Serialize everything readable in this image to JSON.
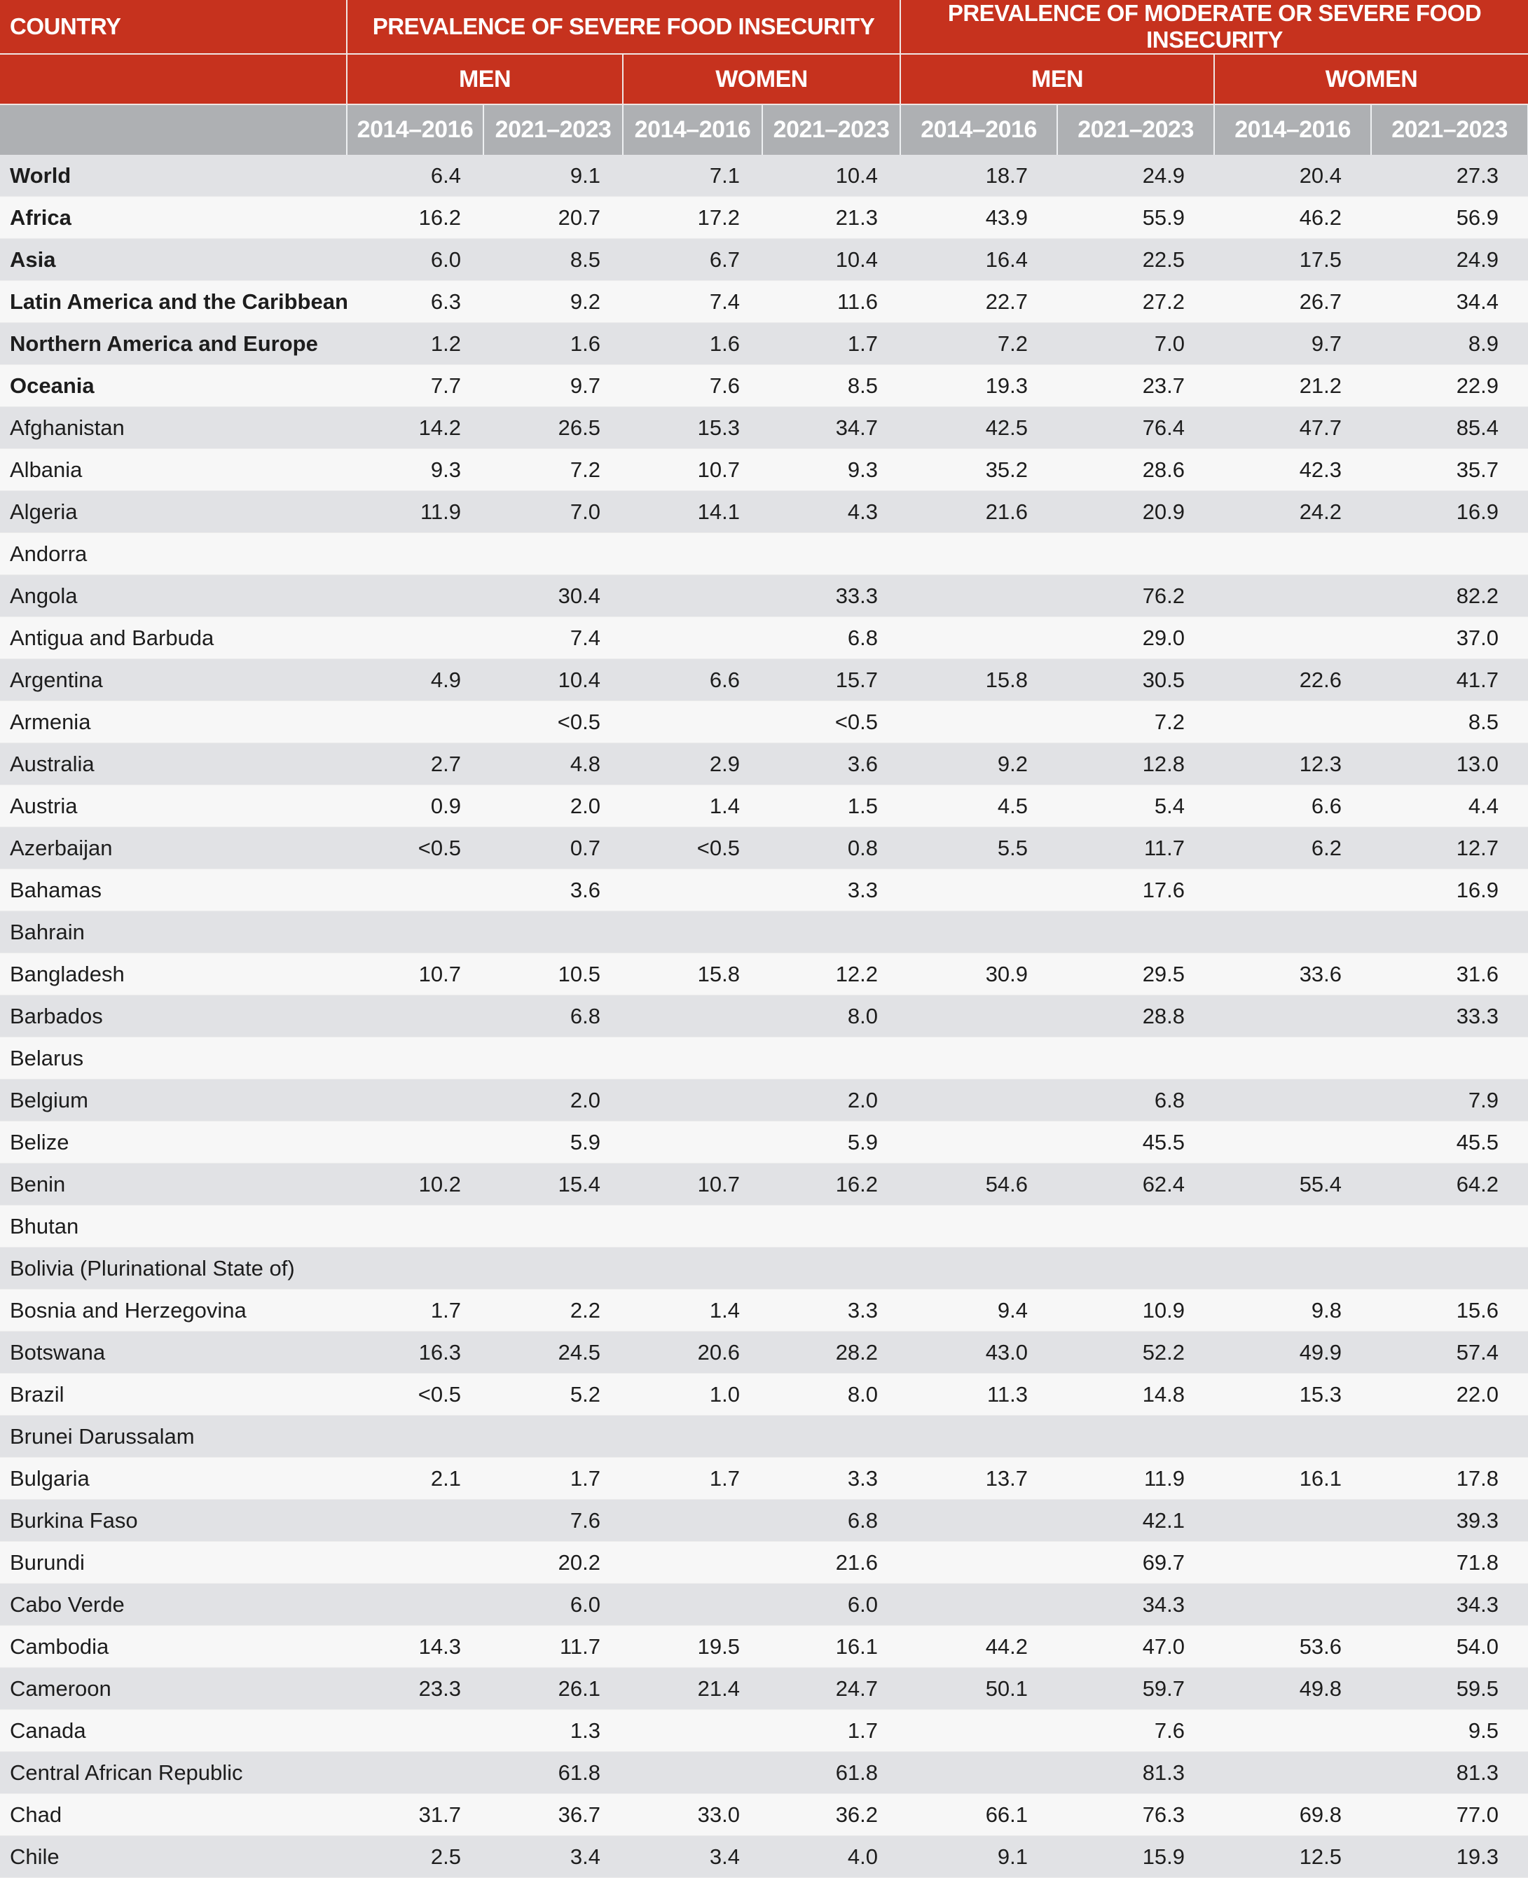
{
  "table": {
    "country_header": "COUNTRY",
    "groups": [
      {
        "label": "PREVALENCE OF SEVERE FOOD INSECURITY"
      },
      {
        "label": "PREVALENCE OF MODERATE OR SEVERE FOOD INSECURITY"
      }
    ],
    "sex_headers": [
      "MEN",
      "WOMEN",
      "MEN",
      "WOMEN"
    ],
    "period_headers": [
      "2014–2016",
      "2021–2023",
      "2014–2016",
      "2021–2023",
      "2014–2016",
      "2021–2023",
      "2014–2016",
      "2021–2023"
    ],
    "colors": {
      "header_red": "#c6321e",
      "subheader_grey": "#aeb0b3",
      "row_shade": "#e1e2e5",
      "row_light": "#f7f7f7"
    },
    "rows": [
      {
        "name": "World",
        "aggregate": true,
        "values": [
          "6.4",
          "9.1",
          "7.1",
          "10.4",
          "18.7",
          "24.9",
          "20.4",
          "27.3"
        ]
      },
      {
        "name": "Africa",
        "aggregate": true,
        "values": [
          "16.2",
          "20.7",
          "17.2",
          "21.3",
          "43.9",
          "55.9",
          "46.2",
          "56.9"
        ]
      },
      {
        "name": "Asia",
        "aggregate": true,
        "values": [
          "6.0",
          "8.5",
          "6.7",
          "10.4",
          "16.4",
          "22.5",
          "17.5",
          "24.9"
        ]
      },
      {
        "name": "Latin America and the Caribbean",
        "aggregate": true,
        "values": [
          "6.3",
          "9.2",
          "7.4",
          "11.6",
          "22.7",
          "27.2",
          "26.7",
          "34.4"
        ]
      },
      {
        "name": "Northern America and Europe",
        "aggregate": true,
        "values": [
          "1.2",
          "1.6",
          "1.6",
          "1.7",
          "7.2",
          "7.0",
          "9.7",
          "8.9"
        ]
      },
      {
        "name": "Oceania",
        "aggregate": true,
        "values": [
          "7.7",
          "9.7",
          "7.6",
          "8.5",
          "19.3",
          "23.7",
          "21.2",
          "22.9"
        ]
      },
      {
        "name": "Afghanistan",
        "values": [
          "14.2",
          "26.5",
          "15.3",
          "34.7",
          "42.5",
          "76.4",
          "47.7",
          "85.4"
        ]
      },
      {
        "name": "Albania",
        "values": [
          "9.3",
          "7.2",
          "10.7",
          "9.3",
          "35.2",
          "28.6",
          "42.3",
          "35.7"
        ]
      },
      {
        "name": "Algeria",
        "values": [
          "11.9",
          "7.0",
          "14.1",
          "4.3",
          "21.6",
          "20.9",
          "24.2",
          "16.9"
        ]
      },
      {
        "name": "Andorra",
        "values": [
          "",
          "",
          "",
          "",
          "",
          "",
          "",
          ""
        ]
      },
      {
        "name": "Angola",
        "values": [
          "",
          "30.4",
          "",
          "33.3",
          "",
          "76.2",
          "",
          "82.2"
        ]
      },
      {
        "name": "Antigua and Barbuda",
        "values": [
          "",
          "7.4",
          "",
          "6.8",
          "",
          "29.0",
          "",
          "37.0"
        ]
      },
      {
        "name": "Argentina",
        "values": [
          "4.9",
          "10.4",
          "6.6",
          "15.7",
          "15.8",
          "30.5",
          "22.6",
          "41.7"
        ]
      },
      {
        "name": "Armenia",
        "values": [
          "",
          "<0.5",
          "",
          "<0.5",
          "",
          "7.2",
          "",
          "8.5"
        ]
      },
      {
        "name": "Australia",
        "values": [
          "2.7",
          "4.8",
          "2.9",
          "3.6",
          "9.2",
          "12.8",
          "12.3",
          "13.0"
        ]
      },
      {
        "name": "Austria",
        "values": [
          "0.9",
          "2.0",
          "1.4",
          "1.5",
          "4.5",
          "5.4",
          "6.6",
          "4.4"
        ]
      },
      {
        "name": "Azerbaijan",
        "values": [
          "<0.5",
          "0.7",
          "<0.5",
          "0.8",
          "5.5",
          "11.7",
          "6.2",
          "12.7"
        ]
      },
      {
        "name": "Bahamas",
        "values": [
          "",
          "3.6",
          "",
          "3.3",
          "",
          "17.6",
          "",
          "16.9"
        ]
      },
      {
        "name": "Bahrain",
        "values": [
          "",
          "",
          "",
          "",
          "",
          "",
          "",
          ""
        ]
      },
      {
        "name": "Bangladesh",
        "values": [
          "10.7",
          "10.5",
          "15.8",
          "12.2",
          "30.9",
          "29.5",
          "33.6",
          "31.6"
        ]
      },
      {
        "name": "Barbados",
        "values": [
          "",
          "6.8",
          "",
          "8.0",
          "",
          "28.8",
          "",
          "33.3"
        ]
      },
      {
        "name": "Belarus",
        "values": [
          "",
          "",
          "",
          "",
          "",
          "",
          "",
          ""
        ]
      },
      {
        "name": "Belgium",
        "values": [
          "",
          "2.0",
          "",
          "2.0",
          "",
          "6.8",
          "",
          "7.9"
        ]
      },
      {
        "name": "Belize",
        "values": [
          "",
          "5.9",
          "",
          "5.9",
          "",
          "45.5",
          "",
          "45.5"
        ]
      },
      {
        "name": "Benin",
        "values": [
          "10.2",
          "15.4",
          "10.7",
          "16.2",
          "54.6",
          "62.4",
          "55.4",
          "64.2"
        ]
      },
      {
        "name": "Bhutan",
        "values": [
          "",
          "",
          "",
          "",
          "",
          "",
          "",
          ""
        ]
      },
      {
        "name": "Bolivia (Plurinational State of)",
        "values": [
          "",
          "",
          "",
          "",
          "",
          "",
          "",
          ""
        ]
      },
      {
        "name": "Bosnia and Herzegovina",
        "values": [
          "1.7",
          "2.2",
          "1.4",
          "3.3",
          "9.4",
          "10.9",
          "9.8",
          "15.6"
        ]
      },
      {
        "name": "Botswana",
        "values": [
          "16.3",
          "24.5",
          "20.6",
          "28.2",
          "43.0",
          "52.2",
          "49.9",
          "57.4"
        ]
      },
      {
        "name": "Brazil",
        "values": [
          "<0.5",
          "5.2",
          "1.0",
          "8.0",
          "11.3",
          "14.8",
          "15.3",
          "22.0"
        ]
      },
      {
        "name": "Brunei Darussalam",
        "values": [
          "",
          "",
          "",
          "",
          "",
          "",
          "",
          ""
        ]
      },
      {
        "name": "Bulgaria",
        "values": [
          "2.1",
          "1.7",
          "1.7",
          "3.3",
          "13.7",
          "11.9",
          "16.1",
          "17.8"
        ]
      },
      {
        "name": "Burkina Faso",
        "values": [
          "",
          "7.6",
          "",
          "6.8",
          "",
          "42.1",
          "",
          "39.3"
        ]
      },
      {
        "name": "Burundi",
        "values": [
          "",
          "20.2",
          "",
          "21.6",
          "",
          "69.7",
          "",
          "71.8"
        ]
      },
      {
        "name": "Cabo Verde",
        "values": [
          "",
          "6.0",
          "",
          "6.0",
          "",
          "34.3",
          "",
          "34.3"
        ]
      },
      {
        "name": "Cambodia",
        "values": [
          "14.3",
          "11.7",
          "19.5",
          "16.1",
          "44.2",
          "47.0",
          "53.6",
          "54.0"
        ]
      },
      {
        "name": "Cameroon",
        "values": [
          "23.3",
          "26.1",
          "21.4",
          "24.7",
          "50.1",
          "59.7",
          "49.8",
          "59.5"
        ]
      },
      {
        "name": "Canada",
        "values": [
          "",
          "1.3",
          "",
          "1.7",
          "",
          "7.6",
          "",
          "9.5"
        ]
      },
      {
        "name": "Central African Republic",
        "values": [
          "",
          "61.8",
          "",
          "61.8",
          "",
          "81.3",
          "",
          "81.3"
        ]
      },
      {
        "name": "Chad",
        "values": [
          "31.7",
          "36.7",
          "33.0",
          "36.2",
          "66.1",
          "76.3",
          "69.8",
          "77.0"
        ]
      },
      {
        "name": "Chile",
        "values": [
          "2.5",
          "3.4",
          "3.4",
          "4.0",
          "9.1",
          "15.9",
          "12.5",
          "19.3"
        ]
      }
    ]
  }
}
